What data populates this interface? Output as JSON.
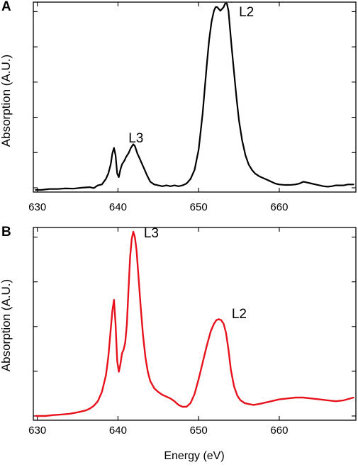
{
  "figure": {
    "x_axis_label": "Energy (eV)"
  },
  "chart_data": [
    {
      "type": "line",
      "panel_label": "A",
      "ylabel": "Absorption (A.U.)",
      "xlabel": "",
      "xlim": [
        629.5,
        669.5
      ],
      "ylim": [
        0,
        1
      ],
      "x_ticks": [
        630,
        640,
        650,
        660
      ],
      "y_tick_count": 6,
      "grid": false,
      "line_color": "#000000",
      "annotations": [
        {
          "text": "L3",
          "x": 641.3,
          "y": 0.26
        },
        {
          "text": "L2",
          "x": 655.0,
          "y": 0.95
        }
      ],
      "series": [
        {
          "x": [
            629.8,
            630.5,
            631.5,
            632.5,
            633.5,
            634.5,
            635.5,
            636.5,
            637.0,
            637.5,
            638.0,
            638.5,
            638.8,
            639.1,
            639.3,
            639.5,
            639.7,
            639.9,
            640.1,
            640.3,
            640.5,
            640.8,
            641.0,
            641.3,
            641.6,
            641.9,
            642.1,
            642.4,
            642.7,
            643.0,
            643.3,
            643.6,
            644.0,
            644.5,
            645.0,
            645.5,
            646.0,
            646.5,
            647.0,
            647.5,
            648.0,
            648.5,
            649.0,
            649.5,
            650.0,
            650.5,
            651.0,
            651.3,
            651.6,
            651.9,
            652.1,
            652.3,
            652.5,
            652.7,
            652.9,
            653.1,
            653.3,
            653.5,
            653.7,
            653.9,
            654.1,
            654.4,
            654.7,
            655.0,
            655.4,
            655.8,
            656.2,
            656.6,
            657.0,
            657.5,
            658.0,
            658.5,
            659.0,
            659.5,
            660.0,
            660.5,
            661.0,
            661.5,
            662.0,
            662.5,
            663.0,
            663.5,
            664.0,
            664.5,
            665.0,
            665.5,
            666.0,
            666.5,
            667.0,
            667.5,
            668.0,
            668.5,
            669.2
          ],
          "y": [
            0.0,
            0.0,
            0.005,
            0.005,
            0.008,
            0.007,
            0.012,
            0.015,
            0.01,
            0.025,
            0.03,
            0.06,
            0.09,
            0.14,
            0.2,
            0.23,
            0.19,
            0.09,
            0.07,
            0.11,
            0.14,
            0.16,
            0.18,
            0.2,
            0.23,
            0.25,
            0.24,
            0.2,
            0.17,
            0.14,
            0.11,
            0.08,
            0.045,
            0.03,
            0.025,
            0.02,
            0.025,
            0.02,
            0.025,
            0.02,
            0.025,
            0.035,
            0.06,
            0.11,
            0.22,
            0.42,
            0.68,
            0.82,
            0.92,
            0.98,
            1.0,
            1.0,
            0.99,
            0.98,
            0.99,
            1.0,
            1.02,
            1.02,
            0.98,
            0.88,
            0.78,
            0.64,
            0.5,
            0.38,
            0.27,
            0.19,
            0.14,
            0.11,
            0.09,
            0.075,
            0.065,
            0.055,
            0.045,
            0.035,
            0.03,
            0.028,
            0.027,
            0.028,
            0.03,
            0.035,
            0.045,
            0.04,
            0.035,
            0.03,
            0.025,
            0.02,
            0.018,
            0.02,
            0.025,
            0.025,
            0.025,
            0.03,
            0.03
          ]
        }
      ]
    },
    {
      "type": "line",
      "panel_label": "B",
      "ylabel": "Absorption (A.U.)",
      "xlabel": "",
      "xlim": [
        629.5,
        669.5
      ],
      "ylim": [
        0,
        1
      ],
      "x_ticks": [
        630,
        640,
        650,
        660
      ],
      "y_tick_count": 5,
      "grid": false,
      "line_color": "#e8121c",
      "annotations": [
        {
          "text": "L3",
          "x": 643.2,
          "y": 0.97
        },
        {
          "text": "L2",
          "x": 654.1,
          "y": 0.53
        }
      ],
      "series": [
        {
          "x": [
            629.8,
            631.0,
            632.0,
            633.0,
            634.0,
            635.0,
            636.0,
            636.5,
            637.0,
            637.5,
            638.0,
            638.5,
            638.8,
            639.1,
            639.3,
            639.5,
            639.7,
            639.9,
            640.1,
            640.3,
            640.5,
            640.7,
            640.9,
            641.1,
            641.3,
            641.5,
            641.7,
            641.9,
            642.1,
            642.3,
            642.5,
            642.8,
            643.1,
            643.4,
            643.7,
            644.0,
            644.5,
            645.0,
            645.5,
            646.0,
            646.5,
            647.0,
            647.5,
            648.0,
            648.5,
            649.0,
            649.5,
            650.0,
            650.5,
            651.0,
            651.5,
            651.9,
            652.2,
            652.5,
            652.8,
            653.1,
            653.4,
            653.7,
            654.0,
            654.4,
            654.8,
            655.2,
            655.7,
            656.2,
            656.8,
            657.5,
            658.0,
            659.0,
            660.0,
            661.0,
            662.0,
            663.0,
            664.0,
            665.0,
            666.0,
            667.0,
            668.0,
            669.2
          ],
          "y": [
            0.0,
            0.0,
            0.005,
            0.008,
            0.012,
            0.02,
            0.03,
            0.04,
            0.055,
            0.08,
            0.13,
            0.22,
            0.32,
            0.47,
            0.57,
            0.63,
            0.5,
            0.3,
            0.24,
            0.28,
            0.34,
            0.36,
            0.4,
            0.5,
            0.68,
            0.86,
            0.96,
            1.0,
            0.97,
            0.9,
            0.78,
            0.6,
            0.44,
            0.32,
            0.24,
            0.19,
            0.15,
            0.13,
            0.115,
            0.105,
            0.095,
            0.08,
            0.06,
            0.05,
            0.05,
            0.07,
            0.12,
            0.2,
            0.29,
            0.38,
            0.46,
            0.5,
            0.52,
            0.525,
            0.52,
            0.5,
            0.45,
            0.36,
            0.25,
            0.16,
            0.11,
            0.085,
            0.07,
            0.065,
            0.06,
            0.065,
            0.07,
            0.08,
            0.09,
            0.095,
            0.1,
            0.1,
            0.095,
            0.09,
            0.085,
            0.08,
            0.085,
            0.1
          ]
        }
      ]
    }
  ]
}
